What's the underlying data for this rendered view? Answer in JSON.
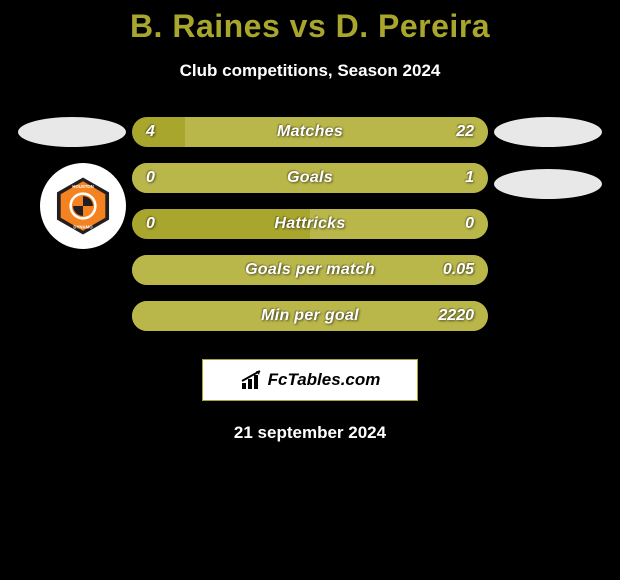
{
  "title": "B. Raines vs D. Pereira",
  "subtitle": "Club competitions, Season 2024",
  "date": "21 september 2024",
  "footer_brand": "FcTables.com",
  "colors": {
    "accent": "#a9a62d",
    "bar_fill": "#b9b64a",
    "background": "#000000",
    "text": "#ffffff",
    "oval": "#e8e8e8",
    "badge_bg": "#ffffff",
    "team_primary": "#f58220",
    "team_secondary": "#231f20"
  },
  "left_player": {
    "team": "Houston Dynamo"
  },
  "bars": [
    {
      "label": "Matches",
      "left": "4",
      "right": "22",
      "left_pct": 15,
      "right_pct": 85
    },
    {
      "label": "Goals",
      "left": "0",
      "right": "1",
      "left_pct": 0,
      "right_pct": 100
    },
    {
      "label": "Hattricks",
      "left": "0",
      "right": "0",
      "left_pct": 50,
      "right_pct": 50
    },
    {
      "label": "Goals per match",
      "left": "",
      "right": "0.05",
      "left_pct": 0,
      "right_pct": 100
    },
    {
      "label": "Min per goal",
      "left": "",
      "right": "2220",
      "left_pct": 0,
      "right_pct": 100
    }
  ]
}
